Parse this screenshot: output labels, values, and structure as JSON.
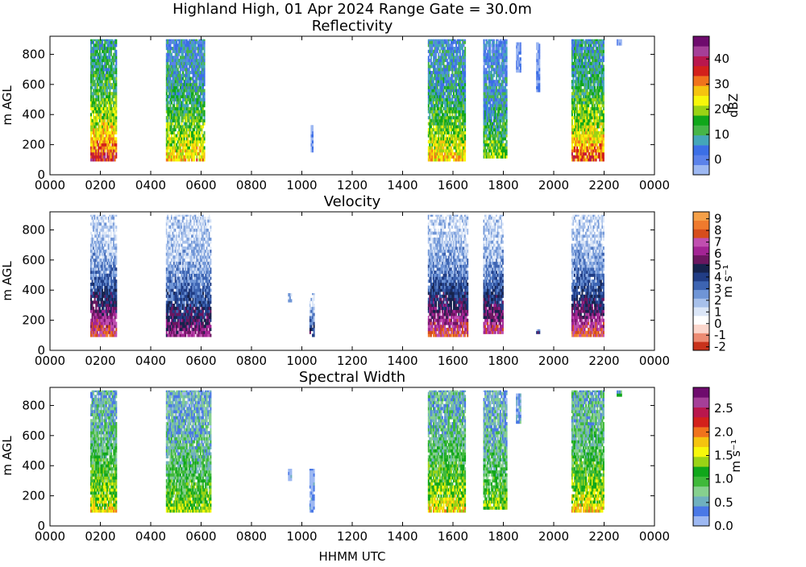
{
  "figure": {
    "title_line1": "Highland High, 01 Apr 2024 Range Gate = 30.0m",
    "xlabel": "HHMM UTC"
  },
  "chart_data": [
    {
      "type": "heatmap",
      "title": "Reflectivity",
      "ylabel": "m AGL",
      "xlim": [
        0,
        2400
      ],
      "ylim": [
        0,
        920
      ],
      "x_ticks": [
        "0000",
        "0200",
        "0400",
        "0600",
        "0800",
        "1000",
        "1200",
        "1400",
        "1600",
        "1800",
        "2000",
        "2200",
        "0000"
      ],
      "y_ticks": [
        "0",
        "200",
        "400",
        "600",
        "800"
      ],
      "colorbar": {
        "label": "dBZ",
        "range": [
          -6,
          49
        ],
        "ticks": [
          "0",
          "10",
          "20",
          "30",
          "40"
        ],
        "tick_values": [
          0,
          10,
          20,
          30,
          40
        ]
      },
      "colors": [
        "#9db8f2",
        "#5b82ea",
        "#3c6fe6",
        "#44a6b9",
        "#46b548",
        "#10a71a",
        "#9ad315",
        "#f7f70b",
        "#f5c40f",
        "#f0731c",
        "#d3201b",
        "#b9174d",
        "#a53f98",
        "#6e0b6d"
      ],
      "echoes": [
        {
          "x": [
            160,
            265
          ],
          "y": [
            90,
            900
          ],
          "peak": 0.78
        },
        {
          "x": [
            460,
            615
          ],
          "y": [
            90,
            900
          ],
          "peak": 0.6
        },
        {
          "x": [
            1035,
            1045
          ],
          "y": [
            150,
            330
          ],
          "peak": 0.08
        },
        {
          "x": [
            1500,
            1650
          ],
          "y": [
            90,
            900
          ],
          "peak": 0.6
        },
        {
          "x": [
            1720,
            1815
          ],
          "y": [
            110,
            900
          ],
          "peak": 0.45
        },
        {
          "x": [
            1850,
            1870
          ],
          "y": [
            680,
            880
          ],
          "peak": 0.1
        },
        {
          "x": [
            1930,
            1945
          ],
          "y": [
            550,
            880
          ],
          "peak": 0.1
        },
        {
          "x": [
            2070,
            2200
          ],
          "y": [
            90,
            900
          ],
          "peak": 0.72
        },
        {
          "x": [
            2250,
            2270
          ],
          "y": [
            860,
            900
          ],
          "peak": 0.1
        }
      ]
    },
    {
      "type": "heatmap",
      "title": "Velocity",
      "ylabel": "m AGL",
      "xlim": [
        0,
        2400
      ],
      "ylim": [
        0,
        920
      ],
      "x_ticks": [
        "0000",
        "0200",
        "0400",
        "0600",
        "0800",
        "1000",
        "1200",
        "1400",
        "1600",
        "1800",
        "2000",
        "2200",
        "0000"
      ],
      "y_ticks": [
        "0",
        "200",
        "400",
        "600",
        "800"
      ],
      "colorbar": {
        "label": "m s⁻¹",
        "range": [
          -2.3,
          9.6
        ],
        "ticks": [
          "-2",
          "-1",
          "0",
          "1",
          "2",
          "3",
          "4",
          "5",
          "6",
          "7",
          "8",
          "9"
        ],
        "tick_values": [
          -2,
          -1,
          0,
          1,
          2,
          3,
          4,
          5,
          6,
          7,
          8,
          9
        ]
      },
      "colors": [
        "#c8321b",
        "#ec8b73",
        "#fbd6cc",
        "#ffffff",
        "#dbe6f7",
        "#a7c0ea",
        "#6f95d6",
        "#3d64b2",
        "#213d85",
        "#17234d",
        "#6b1760",
        "#a32494",
        "#c04fb0",
        "#d64d1c",
        "#ef7a2d",
        "#f6a048"
      ],
      "echoes": [
        {
          "x": [
            160,
            265
          ],
          "y": [
            90,
            900
          ],
          "peak": 0.55
        },
        {
          "x": [
            460,
            640
          ],
          "y": [
            90,
            900
          ],
          "peak": 0.42
        },
        {
          "x": [
            945,
            960
          ],
          "y": [
            320,
            380
          ],
          "peak": 0.1
        },
        {
          "x": [
            1030,
            1050
          ],
          "y": [
            90,
            380
          ],
          "peak": 0.3
        },
        {
          "x": [
            1500,
            1660
          ],
          "y": [
            90,
            900
          ],
          "peak": 0.55
        },
        {
          "x": [
            1720,
            1800
          ],
          "y": [
            110,
            900
          ],
          "peak": 0.5
        },
        {
          "x": [
            1930,
            1945
          ],
          "y": [
            110,
            140
          ],
          "peak": 0.3
        },
        {
          "x": [
            2070,
            2200
          ],
          "y": [
            90,
            900
          ],
          "peak": 0.55
        }
      ]
    },
    {
      "type": "heatmap",
      "title": "Spectral Width",
      "ylabel": "m AGL",
      "xlim": [
        0,
        2400
      ],
      "ylim": [
        0,
        920
      ],
      "x_ticks": [
        "0000",
        "0200",
        "0400",
        "0600",
        "0800",
        "1000",
        "1200",
        "1400",
        "1600",
        "1800",
        "2000",
        "2200",
        "0000"
      ],
      "y_ticks": [
        "0",
        "200",
        "400",
        "600",
        "800"
      ],
      "colorbar": {
        "label": "m s⁻¹",
        "range": [
          0,
          2.95
        ],
        "ticks": [
          "0.0",
          "0.5",
          "1.0",
          "1.5",
          "2.0",
          "2.5"
        ],
        "tick_values": [
          0,
          0.5,
          1.0,
          1.5,
          2.0,
          2.5
        ]
      },
      "colors": [
        "#9db8f2",
        "#4a78e6",
        "#6fb0bf",
        "#86d08e",
        "#3fb93a",
        "#10a71a",
        "#9ad315",
        "#f7f70b",
        "#f5c40f",
        "#f0731c",
        "#d3201b",
        "#b9174d",
        "#a53f98",
        "#6e0b6d"
      ],
      "echoes": [
        {
          "x": [
            160,
            265
          ],
          "y": [
            90,
            900
          ],
          "peak": 0.55
        },
        {
          "x": [
            460,
            640
          ],
          "y": [
            90,
            900
          ],
          "peak": 0.45
        },
        {
          "x": [
            945,
            960
          ],
          "y": [
            300,
            380
          ],
          "peak": 0.05
        },
        {
          "x": [
            1030,
            1050
          ],
          "y": [
            90,
            380
          ],
          "peak": 0.05
        },
        {
          "x": [
            1500,
            1650
          ],
          "y": [
            90,
            900
          ],
          "peak": 0.55
        },
        {
          "x": [
            1720,
            1815
          ],
          "y": [
            110,
            900
          ],
          "peak": 0.45
        },
        {
          "x": [
            1850,
            1870
          ],
          "y": [
            680,
            880
          ],
          "peak": 0.2
        },
        {
          "x": [
            2070,
            2200
          ],
          "y": [
            90,
            900
          ],
          "peak": 0.58
        },
        {
          "x": [
            2250,
            2270
          ],
          "y": [
            860,
            900
          ],
          "peak": 0.3
        }
      ]
    }
  ]
}
